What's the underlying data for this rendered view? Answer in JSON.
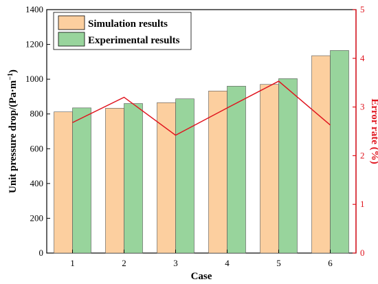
{
  "chart_data": {
    "type": "bar",
    "categories": [
      "1",
      "2",
      "3",
      "4",
      "5",
      "6"
    ],
    "series": [
      {
        "name": "Simulation results",
        "values": [
          812,
          833,
          865,
          932,
          970,
          1135
        ],
        "color": "#fccf9f"
      },
      {
        "name": "Experimental results",
        "values": [
          835,
          860,
          887,
          960,
          1003,
          1165
        ],
        "color": "#98d49c"
      }
    ],
    "line_series": {
      "values": [
        2.68,
        3.2,
        2.42,
        2.98,
        3.53,
        2.63
      ],
      "color": "#e0141e"
    },
    "xlabel": "Case",
    "ylabel_main": "Unit pressure drop/(Pa·m",
    "ylabel_sup": "−1",
    "ylabel_close": ")",
    "ylabel_right": "Error rate (%)",
    "ylim_left": [
      0,
      1400
    ],
    "yticks_left": [
      0,
      200,
      400,
      600,
      800,
      1000,
      1200,
      1400
    ],
    "ylim_right": [
      0,
      5
    ],
    "yticks_right": [
      0,
      1,
      2,
      3,
      4,
      5
    ],
    "grid": false,
    "legend_position": "top-left"
  }
}
